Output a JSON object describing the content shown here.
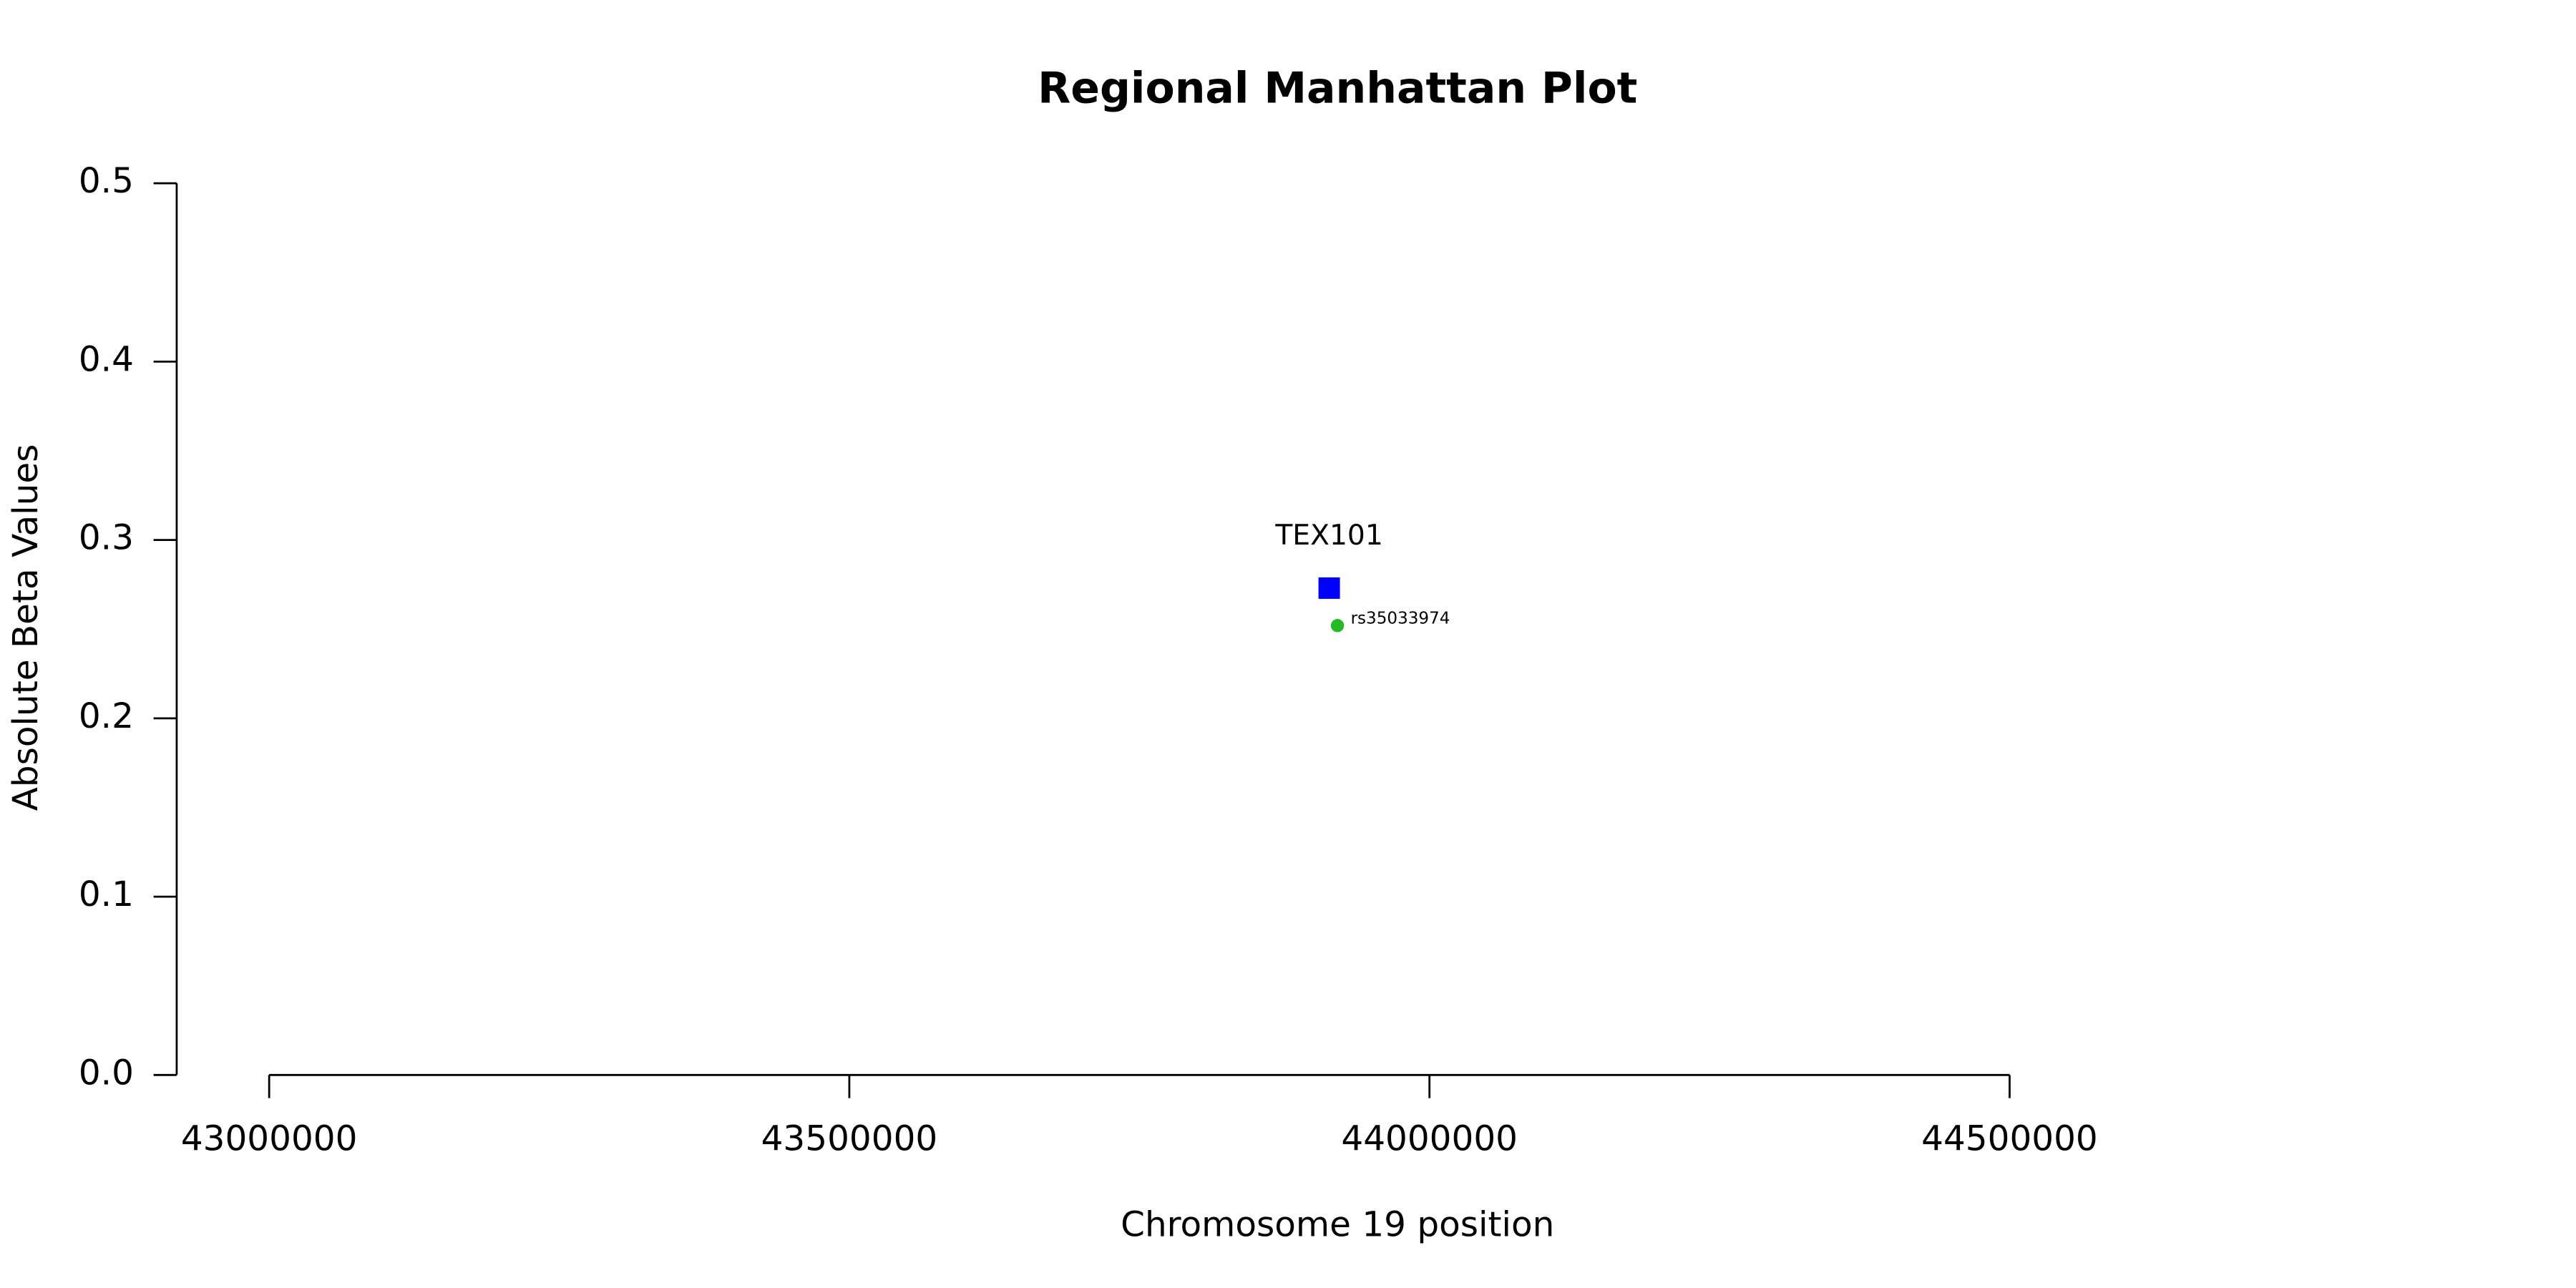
{
  "chart_data": {
    "type": "scatter",
    "title": "Regional Manhattan Plot",
    "x_label": "Chromosome 19 position",
    "y_label": "Absolute Beta Values",
    "points": [
      {
        "label": "TEX101",
        "x": 43913600,
        "y": 0.273,
        "color": "#0000ff",
        "shape": "square"
      },
      {
        "label": "rs35033974",
        "x": 43920700,
        "y": 0.252,
        "color": "#22bb22",
        "shape": "circle"
      }
    ],
    "xlim": [
      43000000,
      44500000
    ],
    "xticks": [
      43000000,
      43500000,
      44000000,
      44500000
    ],
    "ylim": [
      0,
      0.5
    ],
    "yticks": [
      {
        "value": 0,
        "label": "0.0"
      },
      0.1,
      0.2,
      0.3,
      0.4,
      0.5
    ],
    "grid": false
  }
}
